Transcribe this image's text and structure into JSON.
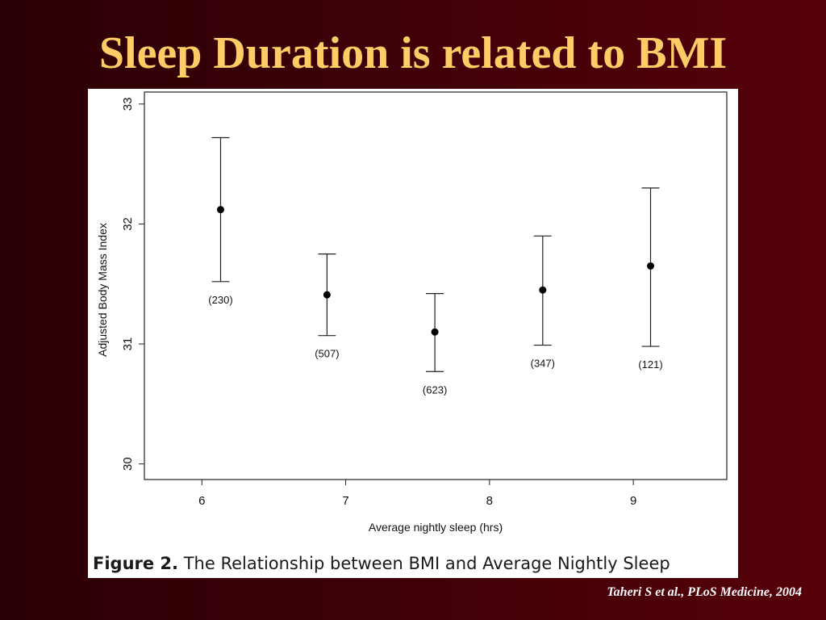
{
  "slide": {
    "title": "Sleep Duration is related to BMI",
    "citation": "Taheri S et al., PLoS Medicine, 2004",
    "title_color": "#ffcc66"
  },
  "figure": {
    "caption_label": "Figure 2.",
    "caption_text": " The Relationship between BMI and Average Nightly Sleep"
  },
  "chart_data": {
    "type": "scatter",
    "xlabel": "Average nightly sleep (hrs)",
    "ylabel": "Adjusted Body Mass Index",
    "xlim": [
      5.6,
      9.65
    ],
    "ylim": [
      29.87,
      33.1
    ],
    "x_ticks": [
      6,
      7,
      8,
      9
    ],
    "y_ticks": [
      30,
      31,
      32,
      33
    ],
    "grid": false,
    "legend": "none",
    "points": [
      {
        "x": 6.13,
        "y": 32.12,
        "lower": 31.52,
        "upper": 32.72,
        "n_label": "(230)"
      },
      {
        "x": 6.87,
        "y": 31.41,
        "lower": 31.07,
        "upper": 31.75,
        "n_label": "(507)"
      },
      {
        "x": 7.62,
        "y": 31.1,
        "lower": 30.77,
        "upper": 31.42,
        "n_label": "(623)"
      },
      {
        "x": 8.37,
        "y": 31.45,
        "lower": 30.99,
        "upper": 31.9,
        "n_label": "(347)"
      },
      {
        "x": 9.12,
        "y": 31.65,
        "lower": 30.98,
        "upper": 32.3,
        "n_label": "(121)"
      }
    ]
  }
}
